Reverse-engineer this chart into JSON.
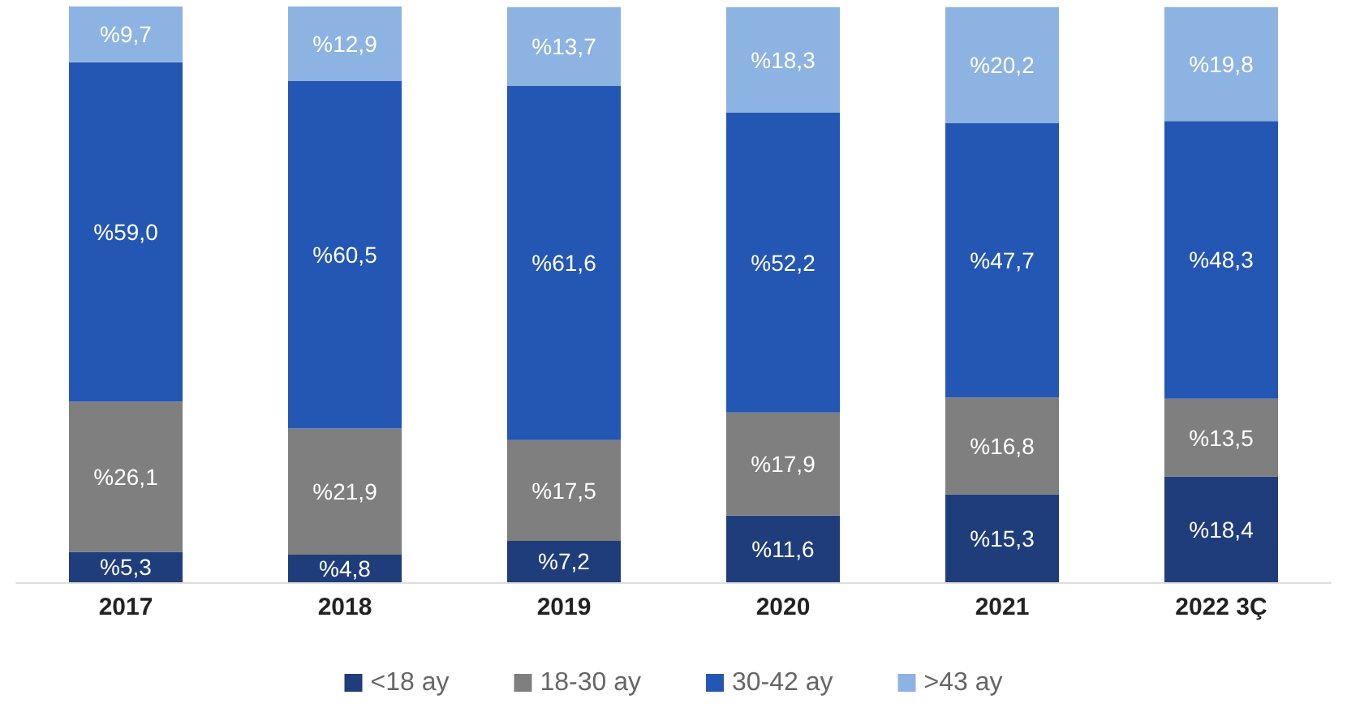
{
  "chart_data": {
    "type": "bar",
    "stacked": true,
    "categories": [
      "2017",
      "2018",
      "2019",
      "2020",
      "2021",
      "2022 3Ç"
    ],
    "legend": "bottom",
    "series": [
      {
        "name": "<18 ay",
        "color": "#1f3d7a",
        "values": [
          5.3,
          4.8,
          7.2,
          11.6,
          15.3,
          18.4
        ],
        "value_labels": [
          "%5,3",
          "%4,8",
          "%7,2",
          "%11,6",
          "%15,3",
          "%18,4"
        ]
      },
      {
        "name": "18-30 ay",
        "color": "#7f7f7f",
        "values": [
          26.1,
          21.9,
          17.5,
          17.9,
          16.8,
          13.5
        ],
        "value_labels": [
          "%26,1",
          "%21,9",
          "%17,5",
          "%17,9",
          "%16,8",
          "%13,5"
        ]
      },
      {
        "name": "30-42 ay",
        "color": "#2457b4",
        "values": [
          59.0,
          60.5,
          61.6,
          52.2,
          47.7,
          48.3
        ],
        "value_labels": [
          "%59,0",
          "%60,5",
          "%61,6",
          "%52,2",
          "%47,7",
          "%48,3"
        ]
      },
      {
        "name": ">43 ay",
        "color": "#8db3e2",
        "values": [
          9.7,
          12.9,
          13.7,
          18.3,
          20.2,
          19.8
        ],
        "value_labels": [
          "%9,7",
          "%12,9",
          "%13,7",
          "%18,3",
          "%20,2",
          "%19,8"
        ]
      }
    ]
  }
}
